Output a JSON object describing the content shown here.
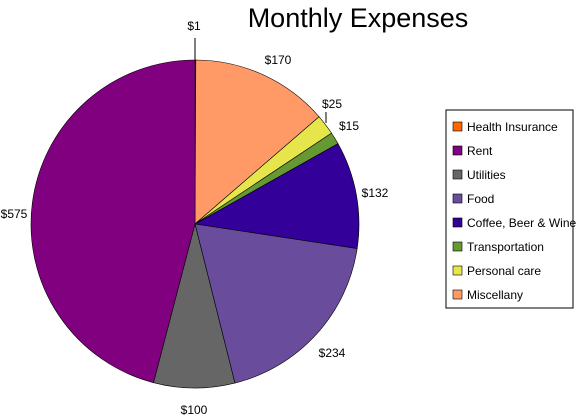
{
  "chart_data": {
    "type": "pie",
    "title": "Monthly Expenses",
    "legend_position": "right",
    "slices": [
      {
        "name": "Health Insurance",
        "value": 1,
        "label": "$1",
        "color": "#ff6600"
      },
      {
        "name": "Miscellany",
        "value": 170,
        "label": "$170",
        "color": "#ff9966"
      },
      {
        "name": "Personal care",
        "value": 25,
        "label": "$25",
        "color": "#e6e64c"
      },
      {
        "name": "Transportation",
        "value": 15,
        "label": "$15",
        "color": "#669933"
      },
      {
        "name": "Coffee, Beer & Wine",
        "value": 132,
        "label": "$132",
        "color": "#330099"
      },
      {
        "name": "Food",
        "value": 234,
        "label": "$234",
        "color": "#6a4c9c"
      },
      {
        "name": "Utilities",
        "value": 100,
        "label": "$100",
        "color": "#666666"
      },
      {
        "name": "Rent",
        "value": 575,
        "label": "$575",
        "color": "#800080"
      }
    ],
    "legend": [
      {
        "name": "Health Insurance",
        "color": "#ff6600"
      },
      {
        "name": "Rent",
        "color": "#800080"
      },
      {
        "name": "Utilities",
        "color": "#666666"
      },
      {
        "name": "Food",
        "color": "#6a4c9c"
      },
      {
        "name": "Coffee, Beer & Wine",
        "color": "#330099"
      },
      {
        "name": "Transportation",
        "color": "#669933"
      },
      {
        "name": "Personal care",
        "color": "#e6e64c"
      },
      {
        "name": "Miscellany",
        "color": "#ff9966"
      }
    ]
  }
}
